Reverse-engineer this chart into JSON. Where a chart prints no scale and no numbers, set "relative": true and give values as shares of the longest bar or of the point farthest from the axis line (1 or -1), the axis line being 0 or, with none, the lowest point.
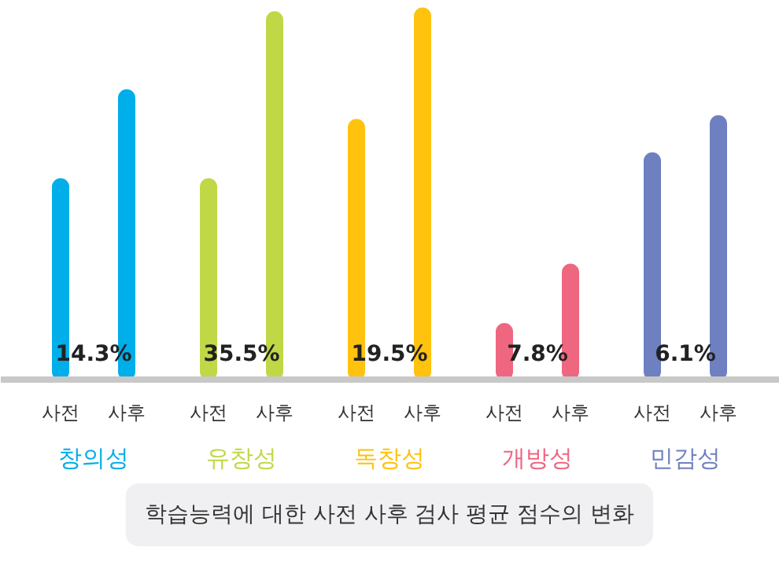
{
  "chart_data": {
    "type": "bar",
    "relative": true,
    "title": "학습능력에 대한 사전 사후 검사 평균 점수의 변화",
    "categories": [
      "사전",
      "사후",
      "사전",
      "사후",
      "사전",
      "사후",
      "사전",
      "사후",
      "사전",
      "사후"
    ],
    "series": [
      {
        "name": "창의성",
        "color": "#00aeea",
        "values": [
          0.54,
          0.78,
          null,
          null,
          null,
          null,
          null,
          null,
          null,
          null
        ]
      },
      {
        "name": "유창성",
        "color": "#c0d846",
        "values": [
          null,
          null,
          0.54,
          0.99,
          null,
          null,
          null,
          null,
          null,
          null
        ]
      },
      {
        "name": "독창성",
        "color": "#ffc20e",
        "values": [
          null,
          null,
          null,
          null,
          0.7,
          1.0,
          null,
          null,
          null,
          null
        ]
      },
      {
        "name": "개방성",
        "color": "#ef6680",
        "values": [
          null,
          null,
          null,
          null,
          null,
          null,
          0.15,
          0.31,
          null,
          null
        ]
      },
      {
        "name": "민감성",
        "color": "#6f80c0",
        "values": [
          null,
          null,
          null,
          null,
          null,
          null,
          null,
          null,
          0.61,
          0.71
        ]
      }
    ],
    "annotations": [
      "14.3%",
      "35.5%",
      "19.5%",
      "7.8%",
      "6.1%"
    ],
    "grid": false
  }
}
